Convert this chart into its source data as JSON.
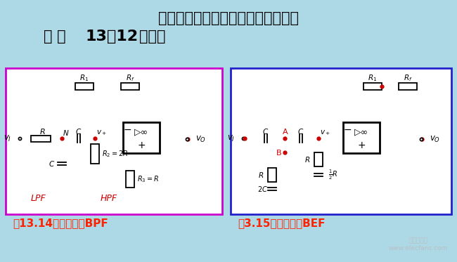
{
  "bg_color": "#add8e6",
  "title_line1": "二阶压控型有源高通滤波器的电路图",
  "title_line2_pre": "如 图",
  "title_line2_bold": "13．12",
  "title_line2_post": "所示。",
  "title_fontsize": 15,
  "title_color": "#000000",
  "left_box_color": "#cc00cc",
  "right_box_color": "#2222cc",
  "caption_left": "图13.14二阶压控型BPF",
  "caption_right": "图3.15二阶压控型BEF",
  "caption_color": "#ff2200",
  "caption_fontsize": 11,
  "node_color": "#cc0000",
  "label_color_red": "#cc0000"
}
